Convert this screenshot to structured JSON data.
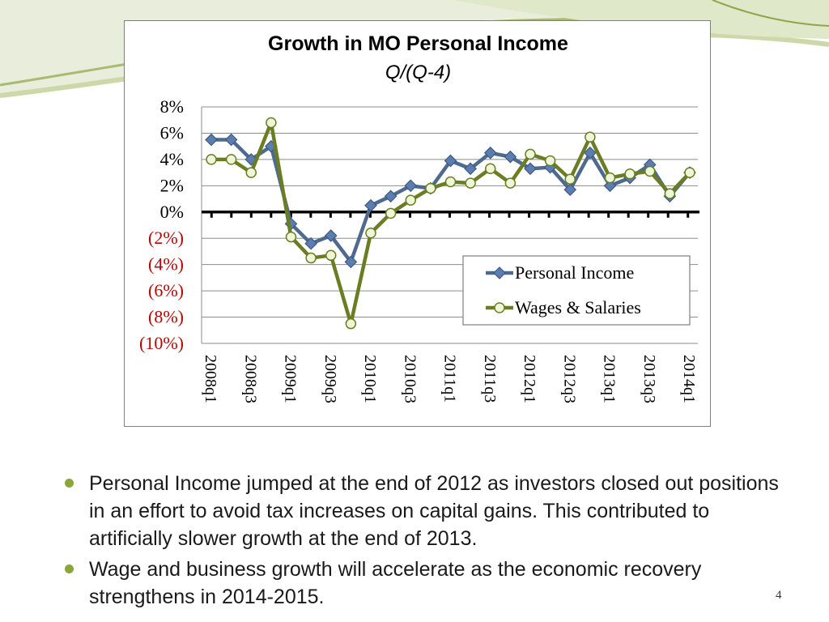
{
  "slide": {
    "bullets": [
      "Personal Income jumped at the end of 2012 as investors closed out positions in an effort to avoid tax increases on capital gains.  This contributed to artificially slower growth at the end of 2013.",
      "Wage and business growth will accelerate as the economic recovery strengthens in 2014-2015."
    ],
    "page_number": "4",
    "colors": {
      "bullet": "#8aa53a",
      "swoosh_dark": "#8fa64a",
      "swoosh_light": "#dfe8c8"
    }
  },
  "chart_data": {
    "type": "line",
    "title": "Growth in MO Personal Income",
    "subtitle": "Q/(Q-4)",
    "xlabel": "",
    "ylabel": "",
    "ylim": [
      -10,
      8
    ],
    "y_ticks": [
      8,
      6,
      4,
      2,
      0,
      -2,
      -4,
      -6,
      -8,
      -10
    ],
    "y_tick_labels": [
      "8%",
      "6%",
      "4%",
      "2%",
      "0%",
      "(2%)",
      "(4%)",
      "(6%)",
      "(8%)",
      "(10%)"
    ],
    "negative_label_color": "#c00000",
    "grid": true,
    "legend_position": "lower-right",
    "x_tick_labels": [
      "2008q1",
      "2008q3",
      "2009q1",
      "2009q3",
      "2010q1",
      "2010q3",
      "2011q1",
      "2011q3",
      "2012q1",
      "2012q3",
      "2013q1",
      "2013q3",
      "2014q1"
    ],
    "categories": [
      "2008q1",
      "2008q2",
      "2008q3",
      "2008q4",
      "2009q1",
      "2009q2",
      "2009q3",
      "2009q4",
      "2010q1",
      "2010q2",
      "2010q3",
      "2010q4",
      "2011q1",
      "2011q2",
      "2011q3",
      "2011q4",
      "2012q1",
      "2012q2",
      "2012q3",
      "2012q4",
      "2013q1",
      "2013q2",
      "2013q3",
      "2013q4",
      "2014q1"
    ],
    "series": [
      {
        "name": "Personal Income",
        "color": "#4f6a8f",
        "marker": "diamond",
        "values": [
          5.5,
          5.5,
          4.0,
          5.0,
          -0.9,
          -2.4,
          -1.8,
          -3.8,
          0.5,
          1.2,
          2.0,
          1.8,
          3.9,
          3.3,
          4.5,
          4.2,
          3.3,
          3.4,
          1.7,
          4.5,
          2.0,
          2.6,
          3.6,
          1.2,
          3.0
        ]
      },
      {
        "name": "Wages & Salaries",
        "color": "#6b7d23",
        "marker": "circle",
        "values": [
          4.0,
          4.0,
          3.0,
          6.8,
          -1.9,
          -3.5,
          -3.3,
          -8.5,
          -1.6,
          -0.1,
          0.9,
          1.8,
          2.3,
          2.2,
          3.3,
          2.2,
          4.4,
          3.9,
          2.5,
          5.7,
          2.6,
          2.9,
          3.1,
          1.4,
          3.0
        ]
      }
    ]
  }
}
